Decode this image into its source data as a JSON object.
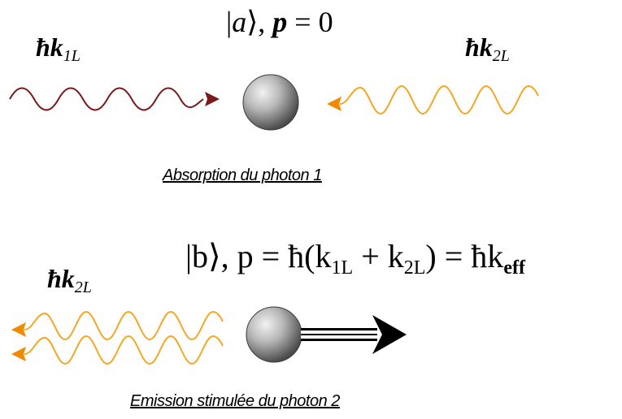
{
  "step1": {
    "photon1_label": {
      "glyph": "ħk",
      "sub": "1L"
    },
    "photon2_label": {
      "glyph": "ħk",
      "sub": "2L"
    },
    "state_ket": "a",
    "momentum_symbol": "p",
    "momentum_value": "= 0",
    "caption": "Absorption du photon 1"
  },
  "step2": {
    "photon2_label": {
      "glyph": "ħk",
      "sub": "2L"
    },
    "state": {
      "ket": "b",
      "momentum_lhs": ", p = ħ(k",
      "sub_1": "1L",
      "plus": " + k",
      "sub_2": "2L",
      "rhs": ") = ħk",
      "sub_eff": "eff"
    },
    "caption": "Emission stimulée du photon 2"
  },
  "colors": {
    "photon1_wave": "#7b1a1a",
    "photon2_wave": "#f5a623",
    "arrowhead_orange": "#f08a00",
    "atom_light": "#f2f2f2",
    "atom_dark": "#5a5a5a",
    "momentum_arrow": "#000000"
  }
}
